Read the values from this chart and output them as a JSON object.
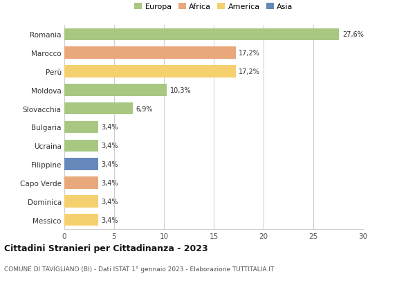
{
  "countries": [
    "Romania",
    "Marocco",
    "Perù",
    "Moldova",
    "Slovacchia",
    "Bulgaria",
    "Ucraina",
    "Filippine",
    "Capo Verde",
    "Dominica",
    "Messico"
  ],
  "values": [
    27.6,
    17.2,
    17.2,
    10.3,
    6.9,
    3.4,
    3.4,
    3.4,
    3.4,
    3.4,
    3.4
  ],
  "percentages": [
    "27,6%",
    "17,2%",
    "17,2%",
    "10,3%",
    "6,9%",
    "3,4%",
    "3,4%",
    "3,4%",
    "3,4%",
    "3,4%",
    "3,4%"
  ],
  "colors": [
    "#a8c882",
    "#e8a87c",
    "#f5d06e",
    "#a8c882",
    "#a8c882",
    "#a8c882",
    "#a8c882",
    "#6688bb",
    "#e8a87c",
    "#f5d06e",
    "#f5d06e"
  ],
  "legend_labels": [
    "Europa",
    "Africa",
    "America",
    "Asia"
  ],
  "legend_colors": [
    "#a8c882",
    "#e8a87c",
    "#f5d06e",
    "#6688bb"
  ],
  "title": "Cittadini Stranieri per Cittadinanza - 2023",
  "subtitle": "COMUNE DI TAVIGLIANO (BI) - Dati ISTAT 1° gennaio 2023 - Elaborazione TUTTITALIA.IT",
  "xlim": [
    0,
    30
  ],
  "xticks": [
    0,
    5,
    10,
    15,
    20,
    25,
    30
  ],
  "background_color": "#ffffff",
  "grid_color": "#cccccc"
}
